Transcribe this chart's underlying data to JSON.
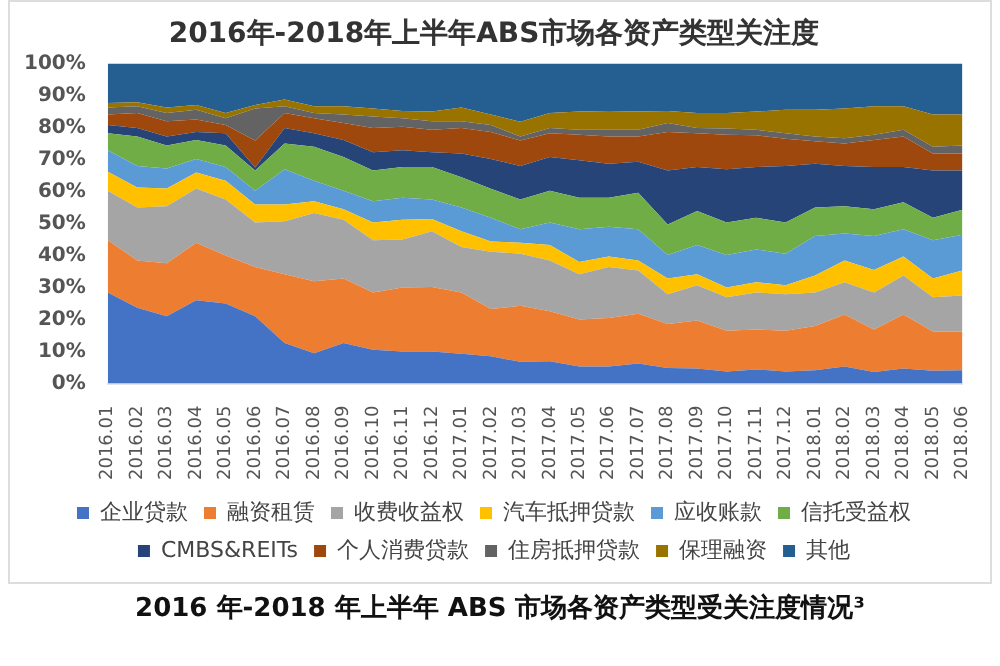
{
  "chart_data": {
    "type": "area",
    "title": "2016年-2018年上半年ABS市场各资产类型关注度",
    "stacked": true,
    "legend": "bottom",
    "ylim": [
      0,
      100
    ],
    "yticks": [
      {
        "value": 0,
        "label": "0%"
      },
      {
        "value": 10,
        "label": "10%"
      },
      {
        "value": 20,
        "label": "20%"
      },
      {
        "value": 30,
        "label": "30%"
      },
      {
        "value": 40,
        "label": "40%"
      },
      {
        "value": 50,
        "label": "50%"
      },
      {
        "value": 60,
        "label": "60%"
      },
      {
        "value": 70,
        "label": "70%"
      },
      {
        "value": 80,
        "label": "80%"
      },
      {
        "value": 90,
        "label": "90%"
      },
      {
        "value": 100,
        "label": "100%"
      }
    ],
    "categories": [
      "2016.01",
      "2016.02",
      "2016.03",
      "2016.04",
      "2016.05",
      "2016.06",
      "2016.07",
      "2016.08",
      "2016.09",
      "2016.10",
      "2016.11",
      "2016.12",
      "2017.01",
      "2017.02",
      "2017.03",
      "2017.04",
      "2017.05",
      "2017.06",
      "2017.07",
      "2017.08",
      "2017.09",
      "2017.10",
      "2017.11",
      "2017.12",
      "2018.01",
      "2018.02",
      "2018.03",
      "2018.04",
      "2018.05",
      "2018.06"
    ],
    "series": [
      {
        "name": "企业贷款",
        "color": "#4472c4",
        "values": [
          28.5,
          23.7,
          21,
          26,
          25,
          21,
          12.7,
          9.5,
          12.7,
          10.6,
          10,
          10,
          9.3,
          8.5,
          6.8,
          7,
          5.3,
          5.3,
          6.3,
          4.9,
          4.7,
          3.8,
          4.4,
          3.8,
          4.2,
          5.3,
          3.6,
          4.7,
          4,
          4.2
        ]
      },
      {
        "name": "融资租赁",
        "color": "#ed7d31",
        "values": [
          16.3,
          14.8,
          16.6,
          18,
          15,
          15.4,
          21.5,
          22.5,
          20.1,
          17.9,
          20,
          20.2,
          19.2,
          14.8,
          17.5,
          15.6,
          14.7,
          15.2,
          15.5,
          13.7,
          15,
          12.7,
          12.5,
          12.7,
          13.8,
          16.3,
          13.3,
          16.9,
          12.3,
          12.1
        ]
      },
      {
        "name": "收费收益权",
        "color": "#a5a5a5",
        "values": [
          15.5,
          16.5,
          17.8,
          17,
          17.5,
          13.9,
          16.5,
          21.3,
          18.4,
          16.3,
          15,
          17.4,
          14.2,
          17.9,
          16.3,
          15.9,
          14.2,
          15.9,
          13.5,
          9.3,
          11,
          10.5,
          11.6,
          11.4,
          10.5,
          10.1,
          11.6,
          12.2,
          10.7,
          11.2
        ]
      },
      {
        "name": "汽车抵押贷款",
        "color": "#ffc000",
        "values": [
          5.9,
          6.3,
          5.6,
          5,
          5.9,
          5.7,
          5.3,
          3.7,
          3.3,
          5.5,
          6.2,
          3.8,
          4.9,
          3.2,
          3.4,
          4.8,
          3.8,
          3.3,
          3.2,
          4.9,
          3.5,
          3,
          3.2,
          2.8,
          5.3,
          6.8,
          7,
          5.9,
          5.8,
          7.8
        ]
      },
      {
        "name": "应收账款",
        "color": "#5b9bd5",
        "values": [
          6.7,
          6.7,
          6.2,
          4.2,
          4.3,
          4.3,
          11,
          6.4,
          5.8,
          6.7,
          6.9,
          6.1,
          7.4,
          7.4,
          4.2,
          7,
          10.2,
          9.3,
          9.7,
          7.4,
          9.1,
          10.2,
          10.2,
          9.9,
          12.3,
          8.4,
          10.6,
          8.5,
          12,
          11.2
        ]
      },
      {
        "name": "信托受益权",
        "color": "#70ad47",
        "values": [
          5.3,
          9.2,
          7.2,
          5.9,
          6.7,
          6.3,
          8,
          10.6,
          10.5,
          9.6,
          9.6,
          10.2,
          9.5,
          9.1,
          9.3,
          10,
          9.9,
          9.1,
          11.4,
          9.5,
          10.6,
          10.1,
          9.9,
          9.7,
          8.9,
          8.5,
          8.4,
          8.5,
          7,
          7.8
        ]
      },
      {
        "name": "CMBS&REITs",
        "color": "#264478",
        "values": [
          2.6,
          2.7,
          2.8,
          2.5,
          3.8,
          0.9,
          4.9,
          4.2,
          5.3,
          5.7,
          5.2,
          4.6,
          7.4,
          9.3,
          10.5,
          10.5,
          11.7,
          10.6,
          9.7,
          16.9,
          13.8,
          16.7,
          15.9,
          17.7,
          13.7,
          12.6,
          13.2,
          11,
          14.8,
          12.3
        ]
      },
      {
        "name": "个人消费贷款",
        "color": "#9e480e",
        "values": [
          3.3,
          4.7,
          4.8,
          3.9,
          2.6,
          8.5,
          4.7,
          4.7,
          5.3,
          7.6,
          7.4,
          7,
          8,
          8.4,
          8,
          7.4,
          8,
          8.5,
          7.9,
          12,
          10.5,
          10.8,
          9.9,
          8.5,
          7,
          7,
          8.4,
          9.5,
          5.3,
          5.3
        ]
      },
      {
        "name": "住房抵押贷款",
        "color": "#636363",
        "values": [
          2.2,
          2.1,
          2.6,
          3.1,
          2.1,
          10,
          2.1,
          1.7,
          2.7,
          3.6,
          2.6,
          2.7,
          2.1,
          2.2,
          1.2,
          1.7,
          1.5,
          2.1,
          2.1,
          2.8,
          1.7,
          1.9,
          1.7,
          1.7,
          1.5,
          1.7,
          1.7,
          2.1,
          2.1,
          2.5
        ]
      },
      {
        "name": "保理融资",
        "color": "#997300",
        "values": [
          1.4,
          1.2,
          1.7,
          1.5,
          1.7,
          1.1,
          2.1,
          2.1,
          2.6,
          2.5,
          2.3,
          3,
          4.3,
          3.3,
          4.6,
          4.7,
          5.7,
          5.9,
          5.7,
          3.8,
          4.7,
          4.9,
          5.7,
          7.4,
          8.4,
          9.3,
          8.9,
          7.4,
          10.1,
          9.7
        ]
      },
      {
        "name": "其他",
        "color": "#255e91",
        "values": [
          12.3,
          12.1,
          13.7,
          12.9,
          15.4,
          12.9,
          11.2,
          13.3,
          13.3,
          14,
          14.8,
          15,
          13.7,
          15.9,
          18.2,
          15.4,
          15,
          14.8,
          15,
          14.8,
          15.4,
          15.4,
          15,
          14.4,
          14.4,
          14,
          13.3,
          13.3,
          15.9,
          15.9
        ]
      }
    ],
    "annotations": [
      "2016 年-2018 年上半年 ABS 市场各资产类型受关注度情况³"
    ]
  }
}
